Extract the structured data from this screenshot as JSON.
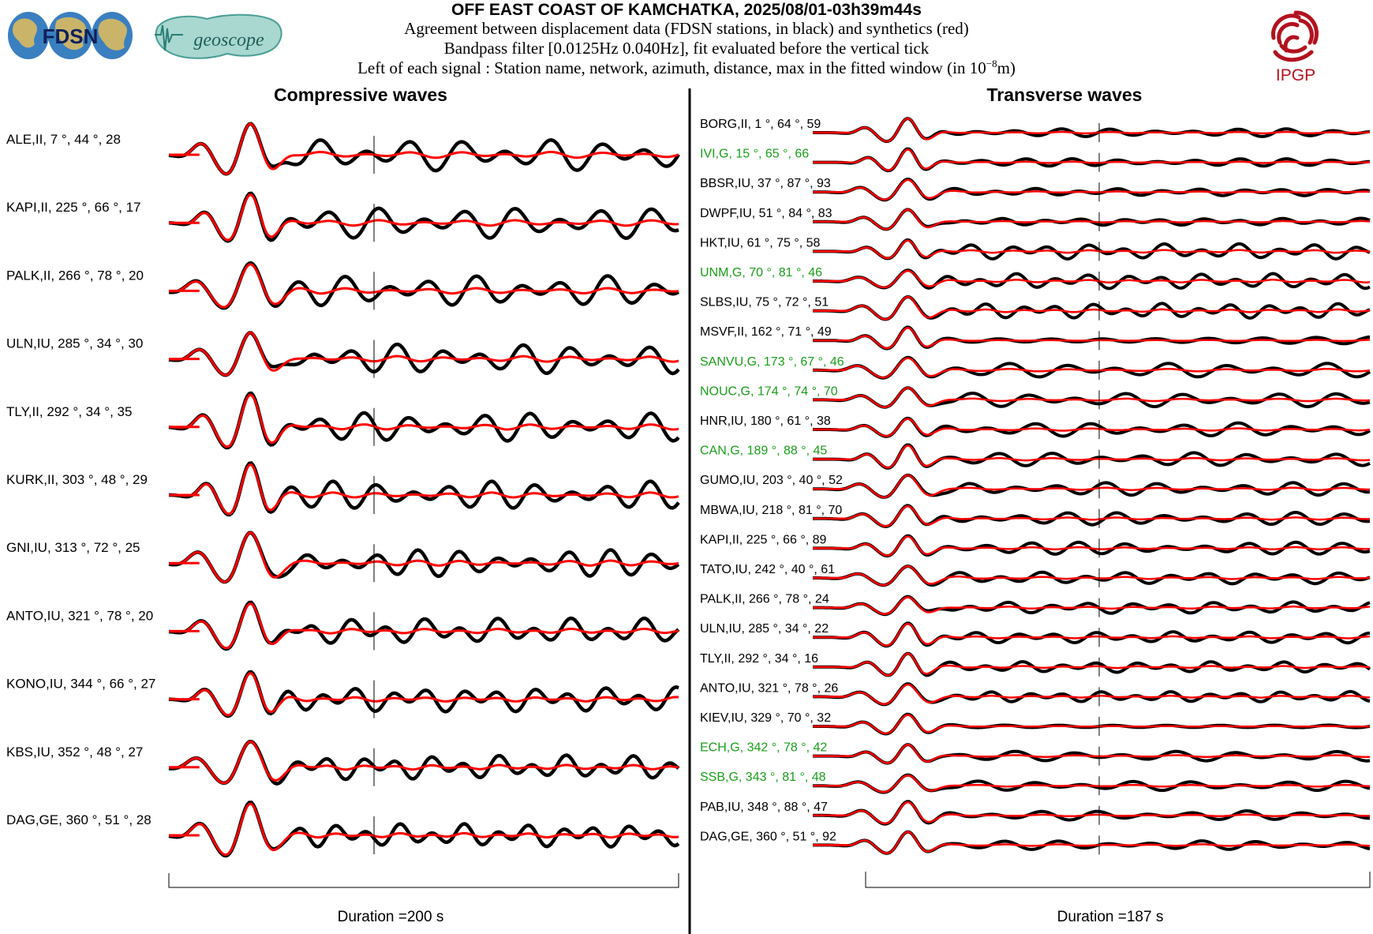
{
  "header": {
    "title": "OFF EAST COAST OF KAMCHATKA, 2025/08/01-03h39m44s",
    "line1": "Agreement between displacement data (FDSN stations, in black) and synthetics (red)",
    "line2": "Bandpass filter [0.0125Hz 0.040Hz], fit evaluated before the vertical tick",
    "line3_pre": "Left of each signal : Station name, network, azimuth, distance, max in the fitted window (in 10",
    "line3_exp": "−8",
    "line3_post": "m)"
  },
  "logos": {
    "fdsn": "FDSN",
    "geoscope": "geoscope",
    "ipgp": "IPGP"
  },
  "colors": {
    "data": "#000000",
    "synthetic": "#ff0000",
    "green_station": "#1a9e1a"
  },
  "chart_data": [
    {
      "type": "line",
      "title": "Compressive waves",
      "xlabel": "Duration =200 s",
      "series_legend": [
        "data (black)",
        "synthetics (red)"
      ],
      "stations": [
        {
          "label": "ALE,II, 7 °, 44 °, 28",
          "green": false
        },
        {
          "label": "KAPI,II, 225 °, 66 °, 17",
          "green": false
        },
        {
          "label": "PALK,II, 266 °, 78 °, 20",
          "green": false
        },
        {
          "label": "ULN,IU, 285 °, 34 °, 30",
          "green": false
        },
        {
          "label": "TLY,II, 292 °, 34 °, 35",
          "green": false
        },
        {
          "label": "KURK,II, 303 °, 48 °, 29",
          "green": false
        },
        {
          "label": "GNI,IU, 313 °, 72 °, 25",
          "green": false
        },
        {
          "label": "ANTO,IU, 321 °, 78 °, 20",
          "green": false
        },
        {
          "label": "KONO,IU, 344 °, 66 °, 27",
          "green": false
        },
        {
          "label": "KBS,IU, 352 °, 48 °, 27",
          "green": false
        },
        {
          "label": "DAG,GE, 360 °, 51 °, 28",
          "green": false
        }
      ]
    },
    {
      "type": "line",
      "title": "Transverse waves",
      "xlabel": "Duration =187 s",
      "series_legend": [
        "data (black)",
        "synthetics (red)"
      ],
      "stations": [
        {
          "label": "BORG,II, 1 °, 64 °, 59",
          "green": false
        },
        {
          "label": "IVI,G, 15 °, 65 °, 66",
          "green": true
        },
        {
          "label": "BBSR,IU, 37 °, 87 °, 93",
          "green": false
        },
        {
          "label": "DWPF,IU, 51 °, 84 °, 83",
          "green": false
        },
        {
          "label": "HKT,IU, 61 °, 75 °, 58",
          "green": false
        },
        {
          "label": "UNM,G, 70 °, 81 °, 46",
          "green": true
        },
        {
          "label": "SLBS,IU, 75 °, 72 °, 51",
          "green": false
        },
        {
          "label": "MSVF,II, 162 °, 71 °, 49",
          "green": false
        },
        {
          "label": "SANVU,G, 173 °, 67 °, 46",
          "green": true
        },
        {
          "label": "NOUC,G, 174 °, 74 °, 70",
          "green": true
        },
        {
          "label": "HNR,IU, 180 °, 61 °, 38",
          "green": false
        },
        {
          "label": "CAN,G, 189 °, 88 °, 45",
          "green": true
        },
        {
          "label": "GUMO,IU, 203 °, 40 °, 52",
          "green": false
        },
        {
          "label": "MBWA,IU, 218 °, 81 °, 70",
          "green": false
        },
        {
          "label": "KAPI,II, 225 °, 66 °, 89",
          "green": false
        },
        {
          "label": "TATO,IU, 242 °, 40 °, 61",
          "green": false
        },
        {
          "label": "PALK,II, 266 °, 78 °, 24",
          "green": false
        },
        {
          "label": "ULN,IU, 285 °, 34 °, 22",
          "green": false
        },
        {
          "label": "TLY,II, 292 °, 34 °, 16",
          "green": false
        },
        {
          "label": "ANTO,IU, 321 °, 78 °, 26",
          "green": false
        },
        {
          "label": "KIEV,IU, 329 °, 70 °, 32",
          "green": false
        },
        {
          "label": "ECH,G, 342 °, 78 °, 42",
          "green": true
        },
        {
          "label": "SSB,G, 343 °, 81 °, 48",
          "green": true
        },
        {
          "label": "PAB,IU, 348 °, 88 °, 47",
          "green": false
        },
        {
          "label": "DAG,GE, 360 °, 51 °, 92",
          "green": false
        }
      ]
    }
  ]
}
